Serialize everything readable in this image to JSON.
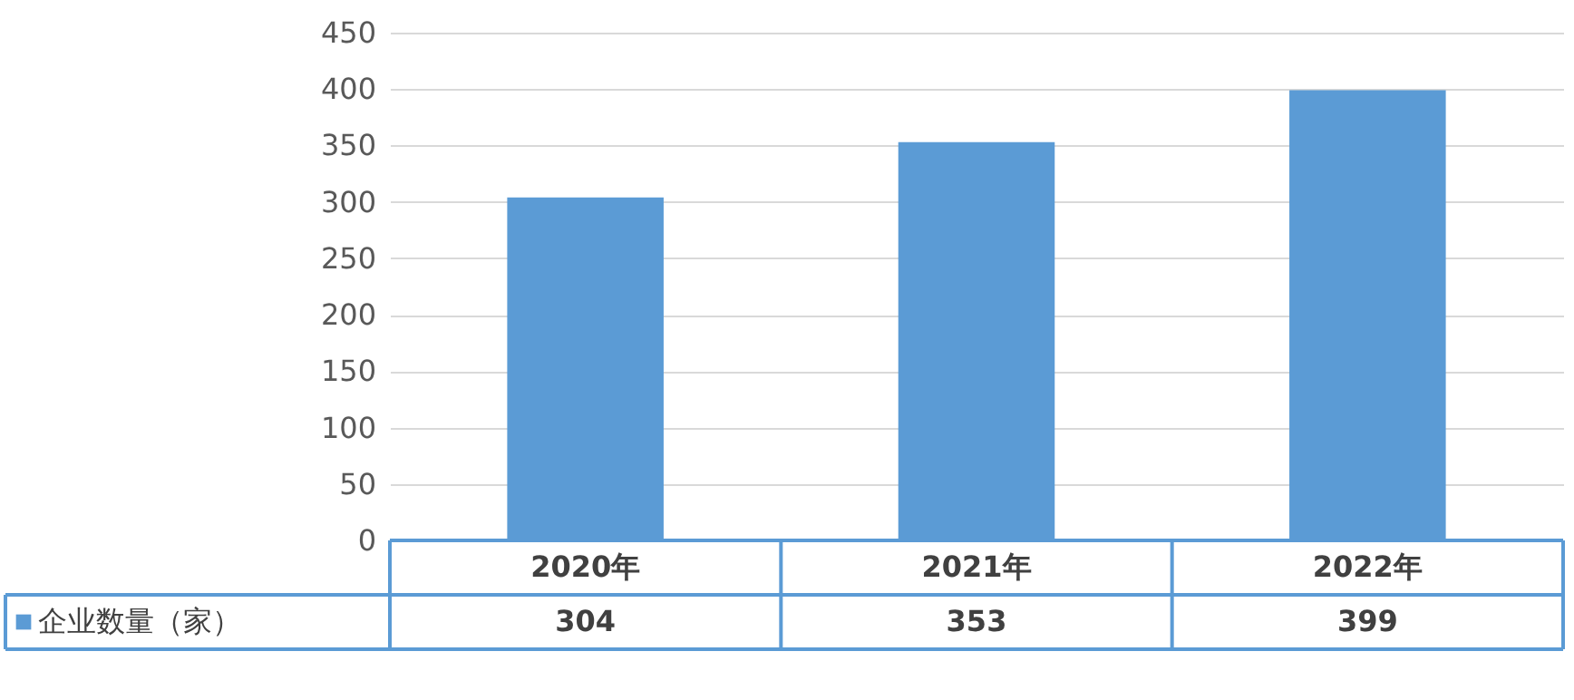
{
  "chart_data": {
    "type": "bar",
    "categories": [
      "2020年",
      "2021年",
      "2022年"
    ],
    "series": [
      {
        "name": "企业数量（家）",
        "color": "#5b9bd5",
        "values": [
          304,
          353,
          399
        ]
      }
    ],
    "ylim": [
      0,
      450
    ],
    "yticks": [
      0,
      50,
      100,
      150,
      200,
      250,
      300,
      350,
      400,
      450
    ],
    "grid": "y",
    "data_labels": true,
    "legend": "bottom"
  }
}
